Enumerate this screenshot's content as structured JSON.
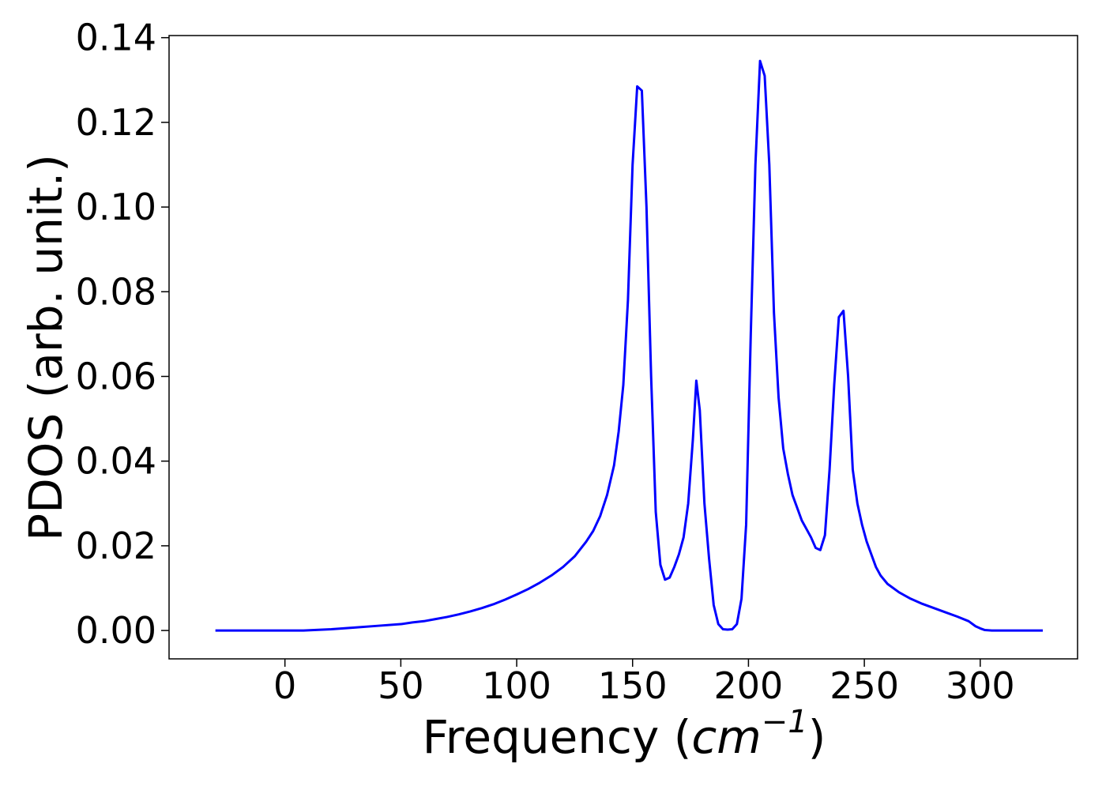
{
  "chart_data": {
    "type": "line",
    "xlabel_main": "Frequency (",
    "xlabel_unit": "cm",
    "xlabel_exp": "−1",
    "xlabel_close": ")",
    "ylabel": "PDOS (arb. unit.)",
    "xlim": [
      -50,
      342
    ],
    "ylim": [
      -0.0067,
      0.1405
    ],
    "xticks": [
      0,
      50,
      100,
      150,
      200,
      250,
      300
    ],
    "xtick_labels": [
      "0",
      "50",
      "100",
      "150",
      "200",
      "250",
      "300"
    ],
    "yticks": [
      0.0,
      0.02,
      0.04,
      0.06,
      0.08,
      0.1,
      0.12,
      0.14
    ],
    "ytick_labels": [
      "0.00",
      "0.02",
      "0.04",
      "0.06",
      "0.08",
      "0.10",
      "0.12",
      "0.14"
    ],
    "grid": false,
    "line_color": "#0000ff",
    "series": [
      {
        "x": [
          -30,
          0,
          8,
          20,
          30,
          40,
          50,
          55,
          60,
          65,
          70,
          75,
          80,
          85,
          90,
          95,
          100,
          105,
          110,
          115,
          120,
          125,
          130,
          133,
          136,
          139,
          142,
          144,
          146,
          148,
          150,
          152,
          154,
          156,
          158,
          160,
          162,
          164,
          166,
          168,
          170,
          172,
          174,
          176,
          177.5,
          179,
          181,
          183,
          185,
          187,
          189,
          191,
          193,
          195,
          197,
          199,
          201,
          203,
          205,
          207,
          209,
          211,
          213,
          215,
          217,
          219,
          221,
          223,
          225,
          227,
          229,
          231,
          233,
          235,
          237,
          239,
          241,
          243,
          245,
          247,
          249,
          251,
          253,
          255,
          257,
          260,
          265,
          270,
          275,
          280,
          285,
          290,
          295,
          298,
          300,
          302,
          305,
          310,
          320,
          327
        ],
        "y": [
          0.0,
          0.0,
          0.0,
          0.0003,
          0.0007,
          0.0011,
          0.0015,
          0.0019,
          0.0022,
          0.0027,
          0.0032,
          0.0038,
          0.0045,
          0.0053,
          0.0062,
          0.0073,
          0.0085,
          0.0098,
          0.0113,
          0.013,
          0.015,
          0.0175,
          0.021,
          0.0235,
          0.027,
          0.032,
          0.039,
          0.047,
          0.058,
          0.078,
          0.11,
          0.1285,
          0.1275,
          0.1,
          0.06,
          0.028,
          0.0155,
          0.012,
          0.0125,
          0.015,
          0.018,
          0.022,
          0.03,
          0.045,
          0.059,
          0.052,
          0.03,
          0.017,
          0.006,
          0.0015,
          0.0003,
          0.0002,
          0.0003,
          0.0015,
          0.0075,
          0.025,
          0.07,
          0.11,
          0.1345,
          0.131,
          0.11,
          0.075,
          0.055,
          0.043,
          0.037,
          0.032,
          0.029,
          0.026,
          0.024,
          0.022,
          0.0195,
          0.019,
          0.0225,
          0.038,
          0.058,
          0.074,
          0.0755,
          0.06,
          0.038,
          0.03,
          0.025,
          0.021,
          0.018,
          0.015,
          0.013,
          0.011,
          0.009,
          0.0075,
          0.0063,
          0.0053,
          0.0043,
          0.0033,
          0.0022,
          0.001,
          0.0005,
          0.0001,
          0.0,
          0.0,
          0.0,
          0.0
        ]
      }
    ]
  }
}
